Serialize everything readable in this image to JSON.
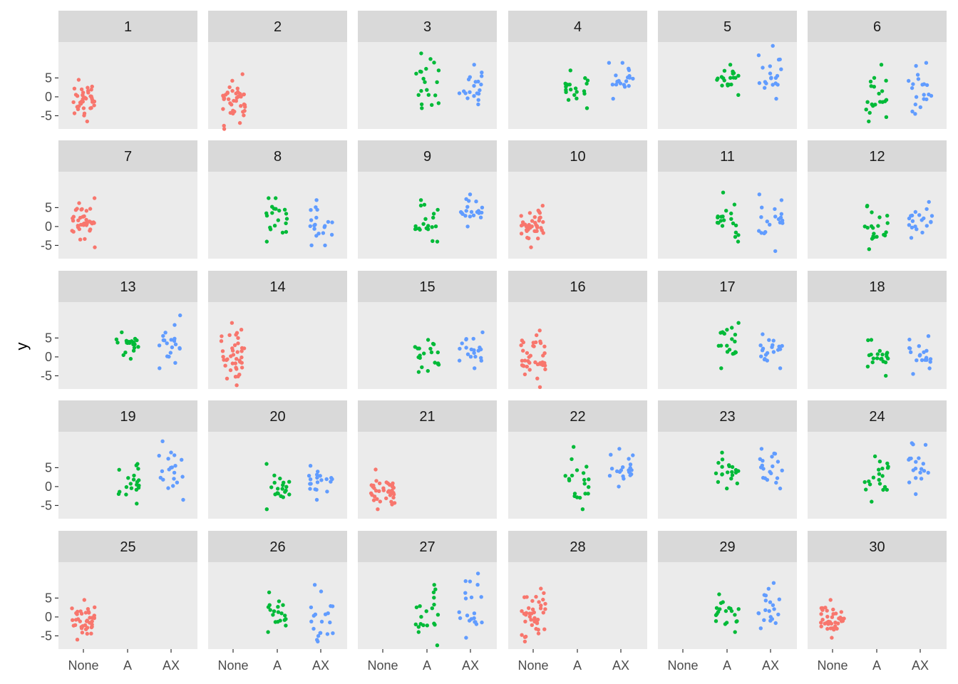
{
  "chart_data": {
    "type": "scatter",
    "ylabel": "y",
    "xlabel": "",
    "categories": [
      "None",
      "A",
      "AX"
    ],
    "yticks": [
      -5,
      0,
      5
    ],
    "ylim": [
      -8.5,
      14.5
    ],
    "colors": {
      "None": "#F8766D",
      "A": "#00BA38",
      "AX": "#619CFF"
    },
    "panel_background": "#EBEBEB",
    "strip_background": "#D9D9D9",
    "grid": false,
    "legend": "none",
    "panels": [
      {
        "label": "1",
        "groups": [
          "None"
        ]
      },
      {
        "label": "2",
        "groups": [
          "None"
        ]
      },
      {
        "label": "3",
        "groups": [
          "A",
          "AX"
        ]
      },
      {
        "label": "4",
        "groups": [
          "A",
          "AX"
        ]
      },
      {
        "label": "5",
        "groups": [
          "A",
          "AX"
        ]
      },
      {
        "label": "6",
        "groups": [
          "A",
          "AX"
        ]
      },
      {
        "label": "7",
        "groups": [
          "None"
        ]
      },
      {
        "label": "8",
        "groups": [
          "A",
          "AX"
        ]
      },
      {
        "label": "9",
        "groups": [
          "A",
          "AX"
        ]
      },
      {
        "label": "10",
        "groups": [
          "None"
        ]
      },
      {
        "label": "11",
        "groups": [
          "A",
          "AX"
        ]
      },
      {
        "label": "12",
        "groups": [
          "A",
          "AX"
        ]
      },
      {
        "label": "13",
        "groups": [
          "A",
          "AX"
        ]
      },
      {
        "label": "14",
        "groups": [
          "None"
        ]
      },
      {
        "label": "15",
        "groups": [
          "A",
          "AX"
        ]
      },
      {
        "label": "16",
        "groups": [
          "None"
        ]
      },
      {
        "label": "17",
        "groups": [
          "A",
          "AX"
        ]
      },
      {
        "label": "18",
        "groups": [
          "A",
          "AX"
        ]
      },
      {
        "label": "19",
        "groups": [
          "A",
          "AX"
        ]
      },
      {
        "label": "20",
        "groups": [
          "A",
          "AX"
        ]
      },
      {
        "label": "21",
        "groups": [
          "None"
        ]
      },
      {
        "label": "22",
        "groups": [
          "A",
          "AX"
        ]
      },
      {
        "label": "23",
        "groups": [
          "A",
          "AX"
        ]
      },
      {
        "label": "24",
        "groups": [
          "A",
          "AX"
        ]
      },
      {
        "label": "25",
        "groups": [
          "None"
        ]
      },
      {
        "label": "26",
        "groups": [
          "A",
          "AX"
        ]
      },
      {
        "label": "27",
        "groups": [
          "A",
          "AX"
        ]
      },
      {
        "label": "28",
        "groups": [
          "None"
        ]
      },
      {
        "label": "29",
        "groups": [
          "A",
          "AX"
        ]
      },
      {
        "label": "30",
        "groups": [
          "None"
        ]
      }
    ],
    "point_ranges": {
      "1": {
        "None": [
          -6.5,
          4.5,
          40
        ]
      },
      "2": {
        "None": [
          -8.5,
          6.0,
          40
        ]
      },
      "3": {
        "A": [
          -3.0,
          11.5,
          20
        ],
        "AX": [
          -2.0,
          8.5,
          20
        ]
      },
      "4": {
        "A": [
          -3.0,
          7.0,
          20
        ],
        "AX": [
          -0.5,
          9.0,
          20
        ]
      },
      "5": {
        "A": [
          0.5,
          8.5,
          20
        ],
        "AX": [
          -0.5,
          13.5,
          20
        ]
      },
      "6": {
        "A": [
          -6.5,
          8.5,
          20
        ],
        "AX": [
          -4.5,
          9.0,
          20
        ]
      },
      "7": {
        "None": [
          -5.5,
          7.5,
          40
        ]
      },
      "8": {
        "A": [
          -4.0,
          7.5,
          20
        ],
        "AX": [
          -5.0,
          7.0,
          20
        ]
      },
      "9": {
        "A": [
          -4.0,
          7.0,
          20
        ],
        "AX": [
          0.0,
          8.5,
          20
        ]
      },
      "10": {
        "None": [
          -5.5,
          5.5,
          40
        ]
      },
      "11": {
        "A": [
          -4.0,
          9.0,
          20
        ],
        "AX": [
          -6.5,
          8.5,
          20
        ]
      },
      "12": {
        "A": [
          -6.0,
          5.5,
          20
        ],
        "AX": [
          -3.0,
          6.5,
          20
        ]
      },
      "13": {
        "A": [
          -0.5,
          6.5,
          20
        ],
        "AX": [
          -3.0,
          11.0,
          20
        ]
      },
      "14": {
        "None": [
          -7.5,
          9.0,
          40
        ]
      },
      "15": {
        "A": [
          -4.0,
          4.5,
          20
        ],
        "AX": [
          -3.0,
          6.5,
          20
        ]
      },
      "16": {
        "None": [
          -8.0,
          7.0,
          40
        ]
      },
      "17": {
        "A": [
          -3.0,
          9.0,
          20
        ],
        "AX": [
          -3.0,
          6.0,
          20
        ]
      },
      "18": {
        "A": [
          -5.0,
          4.5,
          20
        ],
        "AX": [
          -4.5,
          5.5,
          20
        ]
      },
      "19": {
        "A": [
          -4.5,
          6.0,
          20
        ],
        "AX": [
          -3.5,
          12.0,
          20
        ]
      },
      "20": {
        "A": [
          -6.0,
          6.0,
          20
        ],
        "AX": [
          -3.5,
          5.5,
          20
        ]
      },
      "21": {
        "None": [
          -6.0,
          4.5,
          40
        ]
      },
      "22": {
        "A": [
          -6.0,
          10.5,
          20
        ],
        "AX": [
          0.0,
          10.0,
          20
        ]
      },
      "23": {
        "A": [
          -0.5,
          9.0,
          20
        ],
        "AX": [
          -0.5,
          10.0,
          20
        ]
      },
      "24": {
        "A": [
          -4.0,
          8.0,
          20
        ],
        "AX": [
          -2.0,
          11.5,
          20
        ]
      },
      "25": {
        "None": [
          -6.0,
          4.5,
          40
        ]
      },
      "26": {
        "A": [
          -4.0,
          6.5,
          20
        ],
        "AX": [
          -6.5,
          8.5,
          20
        ]
      },
      "27": {
        "A": [
          -7.5,
          8.5,
          20
        ],
        "AX": [
          -5.5,
          11.5,
          20
        ]
      },
      "28": {
        "None": [
          -6.5,
          7.5,
          40
        ]
      },
      "29": {
        "A": [
          -4.0,
          6.0,
          20
        ],
        "AX": [
          -3.0,
          9.0,
          20
        ]
      },
      "30": {
        "None": [
          -5.5,
          4.5,
          40
        ]
      }
    }
  }
}
